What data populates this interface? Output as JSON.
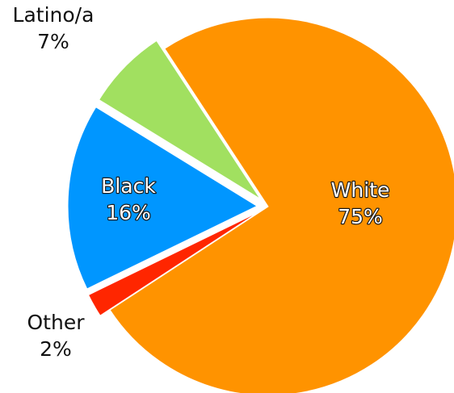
{
  "chart_data": {
    "type": "pie",
    "title": "",
    "slices": [
      {
        "name": "White",
        "label": "White",
        "value": 75,
        "value_label": "75%",
        "color": "#ff9300",
        "label_position": "inside",
        "exploded": false
      },
      {
        "name": "Other",
        "label": "Other",
        "value": 2,
        "value_label": "2%",
        "color": "#ff2600",
        "label_position": "outside",
        "exploded": true
      },
      {
        "name": "Black",
        "label": "Black",
        "value": 16,
        "value_label": "16%",
        "color": "#0096ff",
        "label_position": "inside",
        "exploded": true
      },
      {
        "name": "Latino/a",
        "label": "Latino/a",
        "value": 7,
        "value_label": "7%",
        "color": "#a1e060",
        "label_position": "outside",
        "exploded": true
      }
    ],
    "legend": "none"
  }
}
